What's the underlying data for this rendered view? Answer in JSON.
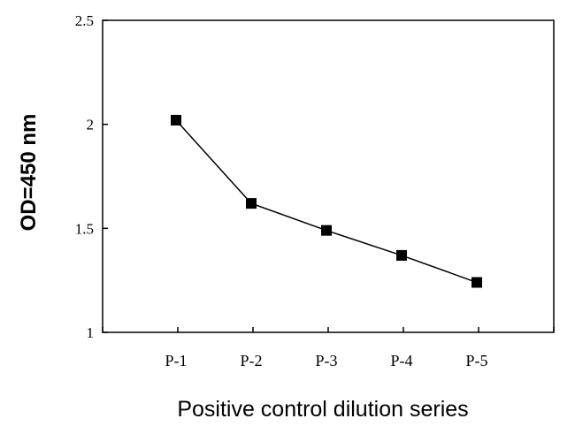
{
  "chart_data": {
    "type": "line",
    "title": "",
    "xlabel": "Positive control dilution series",
    "ylabel": "OD=450 nm",
    "categories": [
      "P-1",
      "P-2",
      "P-3",
      "P-4",
      "P-5"
    ],
    "series": [
      {
        "values": [
          2.02,
          1.62,
          1.49,
          1.37,
          1.24
        ]
      }
    ],
    "ylim": [
      1,
      2.5
    ],
    "yticks": [
      {
        "value": 1,
        "label": "1"
      },
      {
        "value": 1.5,
        "label": "1.5"
      },
      {
        "value": 2,
        "label": "2"
      },
      {
        "value": 2.5,
        "label": "2.5"
      }
    ],
    "grid": false,
    "legend": "none",
    "colors": {
      "line": "#000000",
      "marker": "#000000"
    }
  }
}
